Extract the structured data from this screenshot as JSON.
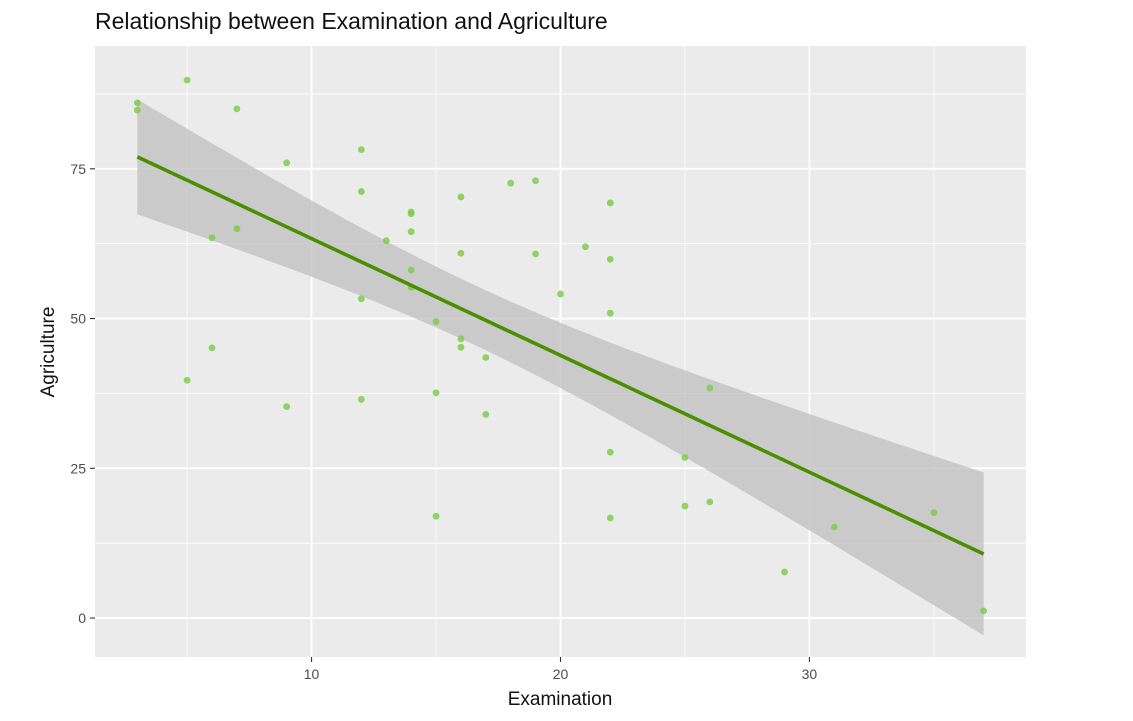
{
  "chart_data": {
    "type": "scatter",
    "title": "Relationship between Examination and Agriculture",
    "xlabel": "Examination",
    "ylabel": "Agriculture",
    "xlim": [
      1.3,
      38.7
    ],
    "ylim": [
      -6.5,
      95.5
    ],
    "xticks": [
      10,
      20,
      30
    ],
    "yticks": [
      0,
      25,
      50,
      75
    ],
    "x_minor": [
      5,
      15,
      25,
      35
    ],
    "y_minor": [
      12.5,
      37.5,
      62.5,
      87.5
    ],
    "grid": true,
    "legend": "none",
    "colors": {
      "panel": "#ebebeb",
      "grid": "#ffffff",
      "point": "#7fcd4b",
      "line": "#4b8f00",
      "band": "#bdbdbd"
    },
    "series": [
      {
        "points": [
          [
            3,
            86
          ],
          [
            3,
            84.8
          ],
          [
            5,
            89.8
          ],
          [
            7,
            85
          ],
          [
            9,
            76
          ],
          [
            12,
            78.2
          ],
          [
            12,
            71.2
          ],
          [
            14,
            67.8
          ],
          [
            14,
            67.5
          ],
          [
            14,
            64.5
          ],
          [
            13,
            63
          ],
          [
            7,
            65
          ],
          [
            6,
            63.5
          ],
          [
            16,
            70.3
          ],
          [
            18,
            72.6
          ],
          [
            19,
            73
          ],
          [
            22,
            69.3
          ],
          [
            16,
            60.9
          ],
          [
            19,
            60.8
          ],
          [
            21,
            62
          ],
          [
            22,
            59.9
          ],
          [
            14,
            58.1
          ],
          [
            14,
            55.2
          ],
          [
            20,
            54.1
          ],
          [
            12,
            53.3
          ],
          [
            22,
            50.9
          ],
          [
            15,
            49.5
          ],
          [
            16,
            46.6
          ],
          [
            16,
            45.2
          ],
          [
            6,
            45.1
          ],
          [
            17,
            43.5
          ],
          [
            5,
            39.7
          ],
          [
            26,
            38.4
          ],
          [
            15,
            37.6
          ],
          [
            12,
            36.5
          ],
          [
            9,
            35.3
          ],
          [
            17,
            34
          ],
          [
            22,
            27.7
          ],
          [
            25,
            26.8
          ],
          [
            26,
            19.4
          ],
          [
            25,
            18.7
          ],
          [
            35,
            17.6
          ],
          [
            15,
            17
          ],
          [
            22,
            16.7
          ],
          [
            31,
            15.2
          ],
          [
            29,
            7.7
          ],
          [
            37,
            1.2
          ]
        ]
      }
    ],
    "trend": {
      "type": "linear",
      "x_range": [
        3,
        37
      ],
      "y_at_range": [
        77.0,
        10.7
      ],
      "ci_upper_at_range": [
        86.5,
        24.3
      ],
      "ci_lower_at_range": [
        67.3,
        -2.9
      ],
      "x_center": 16.5,
      "ci_center_halfwidth": 5.0
    }
  }
}
